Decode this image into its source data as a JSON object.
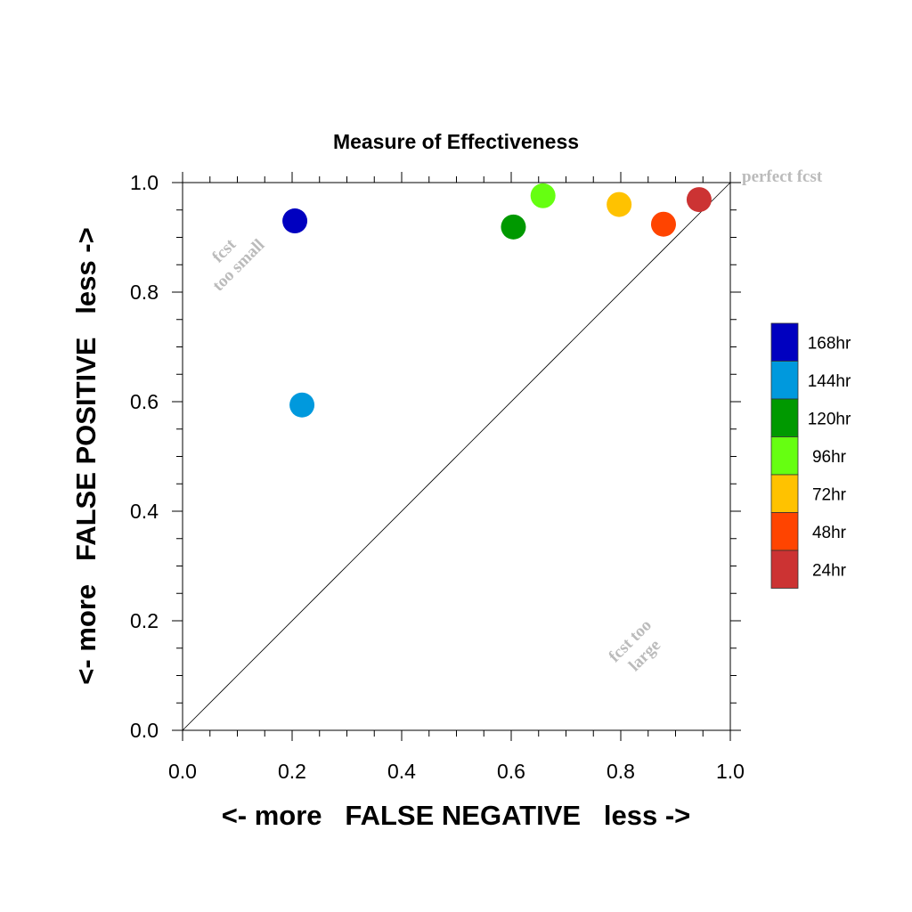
{
  "chart_data": {
    "type": "scatter",
    "title": "Measure of Effectiveness",
    "xlabel": "<- more   FALSE NEGATIVE   less ->",
    "ylabel": "<- more   FALSE POSITIVE   less ->",
    "xlim": [
      0.0,
      1.0
    ],
    "ylim": [
      0.0,
      1.0
    ],
    "x_ticks": [
      "0.0",
      "0.2",
      "0.4",
      "0.6",
      "0.8",
      "1.0"
    ],
    "y_ticks": [
      "0.0",
      "0.2",
      "0.4",
      "0.6",
      "0.8",
      "1.0"
    ],
    "grid": false,
    "diagonal_line": true,
    "legend_position": "right",
    "series": [
      {
        "name": "168hr",
        "color": "#0000c0",
        "x": 0.205,
        "y": 0.93
      },
      {
        "name": "144hr",
        "color": "#0099dd",
        "x": 0.218,
        "y": 0.594
      },
      {
        "name": "120hr",
        "color": "#009900",
        "x": 0.604,
        "y": 0.919
      },
      {
        "name": "96hr",
        "color": "#66ff11",
        "x": 0.658,
        "y": 0.976
      },
      {
        "name": "72hr",
        "color": "#ffc200",
        "x": 0.797,
        "y": 0.96
      },
      {
        "name": "48hr",
        "color": "#ff4400",
        "x": 0.878,
        "y": 0.924
      },
      {
        "name": "24hr",
        "color": "#cc3333",
        "x": 0.943,
        "y": 0.969
      }
    ],
    "annotations": {
      "perfect": "perfect fcst",
      "too_small_line1": "fcst",
      "too_small_line2": "too small",
      "too_large_line1": "fcst too",
      "too_large_line2": "large"
    }
  }
}
